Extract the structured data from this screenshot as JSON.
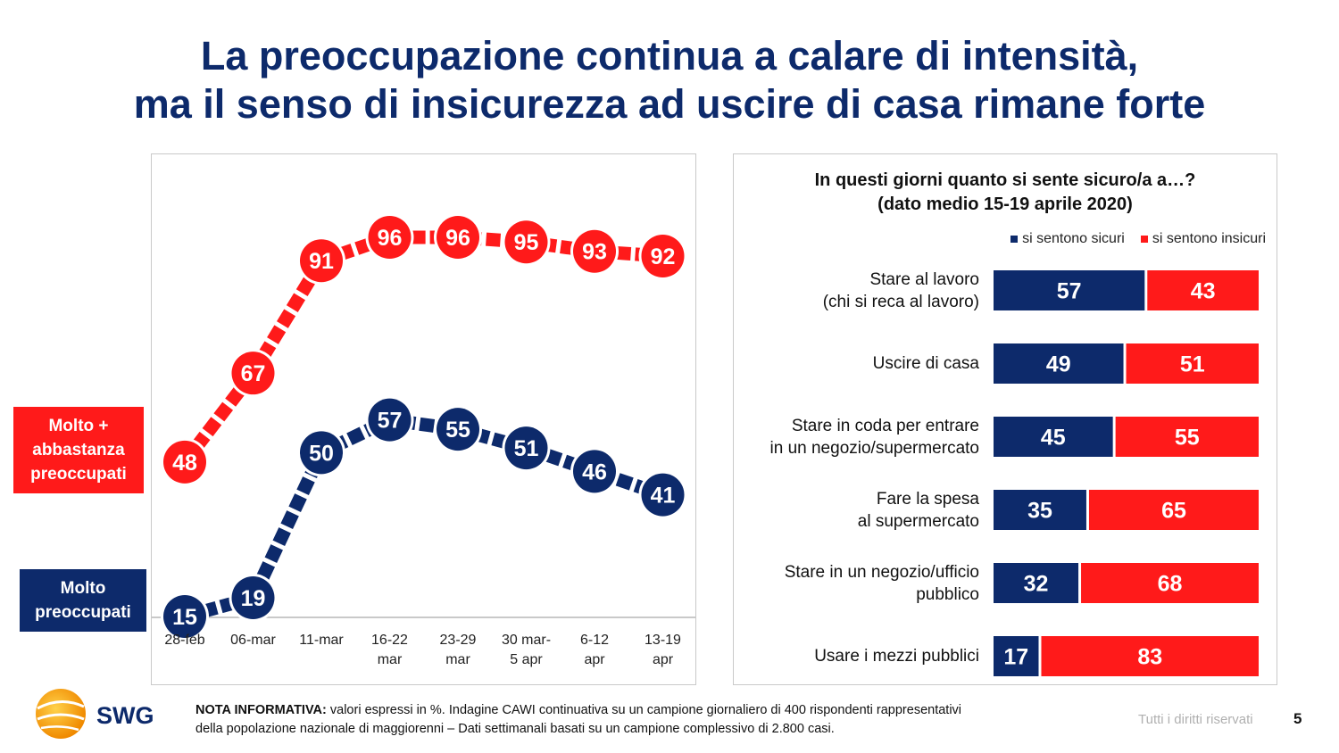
{
  "title_lines": [
    "La preoccupazione continua a calare di intensità,",
    "ma il senso di insicurezza ad uscire di casa rimane forte"
  ],
  "colors": {
    "navy": "#0d2a6b",
    "red": "#ff1a1a",
    "grid": "#c9c9c9"
  },
  "side_labels": {
    "red": [
      "Molto +",
      "abbastanza",
      "preoccupati"
    ],
    "blue": [
      "Molto",
      "preoccupati"
    ]
  },
  "chart_data": [
    {
      "type": "line",
      "categories": [
        "28-feb",
        "06-mar",
        "11-mar",
        "16-22 mar",
        "23-29 mar",
        "30 mar-5 apr",
        "6-12 apr",
        "13-19 apr"
      ],
      "category_lines": [
        [
          "28-feb"
        ],
        [
          "06-mar"
        ],
        [
          "11-mar"
        ],
        [
          "16-22",
          "mar"
        ],
        [
          "23-29",
          "mar"
        ],
        [
          "30 mar-",
          "5 apr"
        ],
        [
          "6-12",
          "apr"
        ],
        [
          "13-19",
          "apr"
        ]
      ],
      "series": [
        {
          "name": "Molto + abbastanza preoccupati",
          "color": "#ff1a1a",
          "values": [
            48,
            67,
            91,
            96,
            96,
            95,
            93,
            92
          ]
        },
        {
          "name": "Molto preoccupati",
          "color": "#0d2a6b",
          "values": [
            15,
            19,
            50,
            57,
            55,
            51,
            46,
            41
          ]
        }
      ],
      "ylim": [
        0,
        120
      ],
      "grid": false
    },
    {
      "type": "bar",
      "orientation": "horizontal",
      "stacked": true,
      "title": [
        "In questi giorni quanto si sente sicuro/a a…?",
        "(dato medio 15-19 aprile 2020)"
      ],
      "legend": [
        "si sentono sicuri",
        "si sentono insicuri"
      ],
      "legend_position": "top-right",
      "categories": [
        [
          "Stare al lavoro",
          "(chi si reca al lavoro)"
        ],
        [
          "Uscire di casa"
        ],
        [
          "Stare in coda per entrare",
          "in un negozio/supermercato"
        ],
        [
          "Fare la spesa",
          "al supermercato"
        ],
        [
          "Stare in un negozio/ufficio",
          "pubblico"
        ],
        [
          "Usare i mezzi pubblici"
        ]
      ],
      "series": [
        {
          "name": "si sentono sicuri",
          "color": "#0d2a6b",
          "values": [
            57,
            49,
            45,
            35,
            32,
            17
          ]
        },
        {
          "name": "si sentono insicuri",
          "color": "#ff1a1a",
          "values": [
            43,
            51,
            55,
            65,
            68,
            83
          ]
        }
      ],
      "xlim": [
        0,
        100
      ]
    }
  ],
  "footer": {
    "note_bold": "NOTA INFORMATIVA:",
    "note_line1": " valori espressi in %. Indagine CAWI continuativa su un campione giornaliero di 400 rispondenti rappresentativi",
    "note_line2": "della popolazione nazionale di maggiorenni – Dati settimanali basati su un campione complessivo di 2.800 casi.",
    "rights": "Tutti i diritti riservati",
    "page": "5",
    "logo_text": "SWG"
  }
}
